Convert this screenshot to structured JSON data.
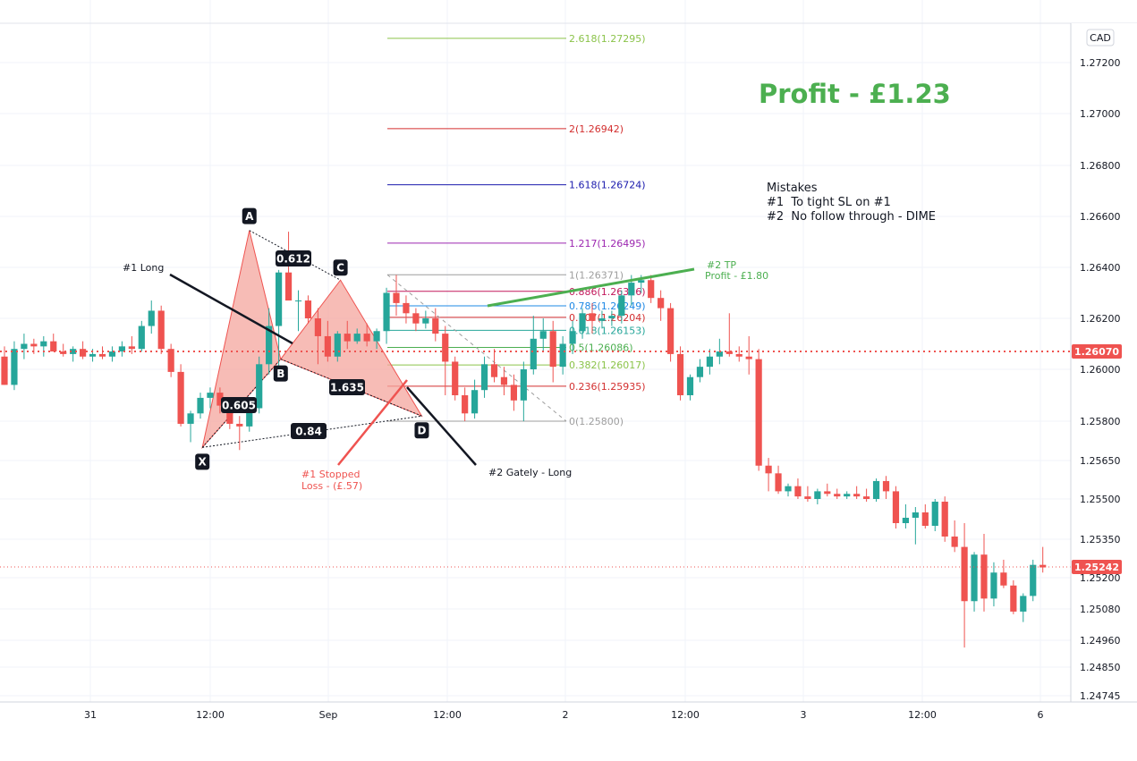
{
  "chart_data": {
    "type": "candlestick",
    "currency": "CAD",
    "colors": {
      "up": "#26a69a",
      "down": "#ef5350",
      "pattern_fill": "#f4a59d",
      "profit": "#4caf50"
    },
    "x_ticks": [
      "31",
      "12:00",
      "Sep",
      "12:00",
      "2",
      "12:00",
      "3",
      "12:00",
      "6"
    ],
    "y_ticks": [
      "1.27200",
      "1.27000",
      "1.26800",
      "1.26600",
      "1.26400",
      "1.26200",
      "1.26000",
      "1.25800",
      "1.25650",
      "1.25500",
      "1.25350",
      "1.25200",
      "1.25080",
      "1.24960",
      "1.24850",
      "1.24745"
    ],
    "price_marks": [
      {
        "label": "1.26070",
        "value": 1.2607,
        "color": "#ef5350"
      },
      {
        "label": "1.25242",
        "value": 1.25242,
        "color": "#ef5350"
      }
    ],
    "fib_levels": [
      {
        "label": "2.618(1.27295)",
        "value": 1.27295,
        "color": "#8bc34a"
      },
      {
        "label": "2(1.26942)",
        "value": 1.26942,
        "color": "#d32f2f"
      },
      {
        "label": "1.618(1.26724)",
        "value": 1.26724,
        "color": "#1a1aad"
      },
      {
        "label": "1.217(1.26495)",
        "value": 1.26495,
        "color": "#9c27b0"
      },
      {
        "label": "1(1.26371)",
        "value": 1.26371,
        "color": "#9e9e9e"
      },
      {
        "label": "0.886(1.26306)",
        "value": 1.26306,
        "color": "#c2185b"
      },
      {
        "label": "0.786(1.26249)",
        "value": 1.26249,
        "color": "#1e88e5"
      },
      {
        "label": "0.707(1.26204)",
        "value": 1.26204,
        "color": "#d32f2f"
      },
      {
        "label": "0.618(1.26153)",
        "value": 1.26153,
        "color": "#26a69a"
      },
      {
        "label": "0.5(1.26086)",
        "value": 1.26086,
        "color": "#4caf50"
      },
      {
        "label": "0.382(1.26017)",
        "value": 1.26017,
        "color": "#8bc34a"
      },
      {
        "label": "0.236(1.25935)",
        "value": 1.25935,
        "color": "#d32f2f"
      },
      {
        "label": "0(1.25800)",
        "value": 1.258,
        "color": "#9e9e9e"
      }
    ],
    "pattern": {
      "points": [
        "X",
        "A",
        "B",
        "C",
        "D"
      ],
      "ratios": [
        "0.612",
        "1.635",
        "0.605",
        "0.84"
      ]
    },
    "annotations": {
      "profit_title": "Profit - £1.23",
      "mistakes_title": "Mistakes",
      "mistake_1": "#1  To tight SL on #1",
      "mistake_2": "#2  No follow through - DIME",
      "long_1": "#1 Long",
      "long_2": "#2 Gately - Long",
      "stopped_1": "#1 Stopped",
      "stopped_2": "Loss - (£.57)",
      "tp_1": "#2 TP",
      "tp_2": "Profit - £1.80"
    },
    "candles": [
      [
        1.2605,
        1.2609,
        1.2594,
        1.2594
      ],
      [
        1.2594,
        1.2611,
        1.2592,
        1.2608
      ],
      [
        1.2608,
        1.2614,
        1.2604,
        1.261
      ],
      [
        1.261,
        1.2612,
        1.2606,
        1.2609
      ],
      [
        1.2609,
        1.2613,
        1.2605,
        1.2611
      ],
      [
        1.2611,
        1.2614,
        1.2607,
        1.2607
      ],
      [
        1.2607,
        1.261,
        1.2605,
        1.2606
      ],
      [
        1.2606,
        1.2609,
        1.2603,
        1.2608
      ],
      [
        1.2608,
        1.2611,
        1.2604,
        1.2605
      ],
      [
        1.2605,
        1.2608,
        1.2603,
        1.2606
      ],
      [
        1.2606,
        1.2609,
        1.2604,
        1.2605
      ],
      [
        1.2605,
        1.2609,
        1.2603,
        1.2607
      ],
      [
        1.2607,
        1.2611,
        1.2605,
        1.2609
      ],
      [
        1.2609,
        1.2613,
        1.2606,
        1.2608
      ],
      [
        1.2608,
        1.2619,
        1.2607,
        1.2617
      ],
      [
        1.2617,
        1.2627,
        1.2614,
        1.2623
      ],
      [
        1.2623,
        1.2625,
        1.2606,
        1.2608
      ],
      [
        1.2608,
        1.261,
        1.2597,
        1.2599
      ],
      [
        1.2599,
        1.2602,
        1.2578,
        1.2579
      ],
      [
        1.2579,
        1.2584,
        1.2572,
        1.2583
      ],
      [
        1.2583,
        1.2591,
        1.2581,
        1.2589
      ],
      [
        1.2589,
        1.2593,
        1.2585,
        1.2591
      ],
      [
        1.2591,
        1.2593,
        1.2583,
        1.2586
      ],
      [
        1.2586,
        1.2589,
        1.2577,
        1.2579
      ],
      [
        1.2579,
        1.2582,
        1.2569,
        1.2578
      ],
      [
        1.2578,
        1.2587,
        1.2576,
        1.2585
      ],
      [
        1.2585,
        1.2605,
        1.2583,
        1.2602
      ],
      [
        1.2602,
        1.2624,
        1.2598,
        1.2617
      ],
      [
        1.2617,
        1.2639,
        1.2601,
        1.2638
      ],
      [
        1.2638,
        1.2654,
        1.2628,
        1.2627
      ],
      [
        1.2627,
        1.2631,
        1.2615,
        1.2627
      ],
      [
        1.2627,
        1.2629,
        1.2618,
        1.262
      ],
      [
        1.262,
        1.2624,
        1.2602,
        1.2613
      ],
      [
        1.2613,
        1.2619,
        1.2603,
        1.2605
      ],
      [
        1.2605,
        1.2615,
        1.2603,
        1.2614
      ],
      [
        1.2614,
        1.2619,
        1.2608,
        1.2611
      ],
      [
        1.2611,
        1.2616,
        1.261,
        1.2614
      ],
      [
        1.2614,
        1.2618,
        1.2609,
        1.2611
      ],
      [
        1.2611,
        1.2616,
        1.2608,
        1.2615
      ],
      [
        1.2615,
        1.2632,
        1.261,
        1.263
      ],
      [
        1.263,
        1.2637,
        1.2621,
        1.2626
      ],
      [
        1.2626,
        1.2629,
        1.2618,
        1.2622
      ],
      [
        1.2622,
        1.2624,
        1.2615,
        1.2618
      ],
      [
        1.2618,
        1.2623,
        1.2616,
        1.262
      ],
      [
        1.262,
        1.2624,
        1.2611,
        1.2614
      ],
      [
        1.2614,
        1.2617,
        1.259,
        1.2603
      ],
      [
        1.2603,
        1.2605,
        1.2588,
        1.259
      ],
      [
        1.259,
        1.2593,
        1.258,
        1.2583
      ],
      [
        1.2583,
        1.2596,
        1.2581,
        1.2592
      ],
      [
        1.2592,
        1.2605,
        1.2589,
        1.2602
      ],
      [
        1.2602,
        1.2608,
        1.2595,
        1.2597
      ],
      [
        1.2597,
        1.2601,
        1.259,
        1.2594
      ],
      [
        1.2594,
        1.2598,
        1.2584,
        1.2588
      ],
      [
        1.2588,
        1.2603,
        1.258,
        1.26
      ],
      [
        1.26,
        1.2621,
        1.2598,
        1.2612
      ],
      [
        1.2612,
        1.262,
        1.2607,
        1.2615
      ],
      [
        1.2615,
        1.2619,
        1.2595,
        1.2601
      ],
      [
        1.2601,
        1.2613,
        1.2598,
        1.261
      ],
      [
        1.261,
        1.2619,
        1.2606,
        1.2615
      ],
      [
        1.2615,
        1.2624,
        1.2612,
        1.2622
      ],
      [
        1.2622,
        1.2626,
        1.2614,
        1.2619
      ],
      [
        1.2619,
        1.2623,
        1.2616,
        1.262
      ],
      [
        1.262,
        1.2623,
        1.2617,
        1.2621
      ],
      [
        1.2621,
        1.2631,
        1.2618,
        1.2629
      ],
      [
        1.2629,
        1.2637,
        1.2625,
        1.2634
      ],
      [
        1.2634,
        1.2637,
        1.263,
        1.2635
      ],
      [
        1.2635,
        1.2637,
        1.2626,
        1.2628
      ],
      [
        1.2628,
        1.2631,
        1.2619,
        1.2624
      ],
      [
        1.2624,
        1.2626,
        1.2603,
        1.2606
      ],
      [
        1.2606,
        1.2609,
        1.2588,
        1.259
      ],
      [
        1.259,
        1.2598,
        1.2588,
        1.2597
      ],
      [
        1.2597,
        1.2604,
        1.2595,
        1.2601
      ],
      [
        1.2601,
        1.2608,
        1.2598,
        1.2605
      ],
      [
        1.2605,
        1.2612,
        1.2602,
        1.2607
      ],
      [
        1.2607,
        1.2622,
        1.2605,
        1.2606
      ],
      [
        1.2606,
        1.2609,
        1.2603,
        1.2605
      ],
      [
        1.2605,
        1.2613,
        1.2598,
        1.2604
      ],
      [
        1.2604,
        1.2608,
        1.2561,
        1.2563
      ],
      [
        1.2563,
        1.2566,
        1.2553,
        1.256
      ],
      [
        1.256,
        1.2563,
        1.2552,
        1.2553
      ],
      [
        1.2553,
        1.2556,
        1.2551,
        1.2555
      ],
      [
        1.2555,
        1.2558,
        1.255,
        1.2551
      ],
      [
        1.2551,
        1.2555,
        1.2549,
        1.255
      ],
      [
        1.255,
        1.2554,
        1.2548,
        1.2553
      ],
      [
        1.2553,
        1.2556,
        1.2551,
        1.2552
      ],
      [
        1.2552,
        1.2554,
        1.255,
        1.2551
      ],
      [
        1.2551,
        1.2553,
        1.255,
        1.2552
      ],
      [
        1.2552,
        1.2555,
        1.255,
        1.2551
      ],
      [
        1.2551,
        1.2554,
        1.2549,
        1.255
      ],
      [
        1.255,
        1.2558,
        1.2549,
        1.2557
      ],
      [
        1.2557,
        1.2559,
        1.255,
        1.2553
      ],
      [
        1.2553,
        1.2555,
        1.2539,
        1.2541
      ],
      [
        1.2541,
        1.2548,
        1.2539,
        1.2543
      ],
      [
        1.2543,
        1.2547,
        1.2533,
        1.2545
      ],
      [
        1.2545,
        1.2548,
        1.2539,
        1.254
      ],
      [
        1.254,
        1.255,
        1.2538,
        1.2549
      ],
      [
        1.2549,
        1.2551,
        1.2534,
        1.2536
      ],
      [
        1.2536,
        1.2542,
        1.253,
        1.2532
      ],
      [
        1.2532,
        1.2541,
        1.2493,
        1.2511
      ],
      [
        1.2511,
        1.253,
        1.2507,
        1.2529
      ],
      [
        1.2529,
        1.2537,
        1.2507,
        1.2512
      ],
      [
        1.2512,
        1.2526,
        1.2509,
        1.2522
      ],
      [
        1.2522,
        1.2527,
        1.2516,
        1.2517
      ],
      [
        1.2517,
        1.2519,
        1.2506,
        1.2507
      ],
      [
        1.2507,
        1.2514,
        1.2503,
        1.2513
      ],
      [
        1.2513,
        1.2527,
        1.2511,
        1.2525
      ],
      [
        1.2525,
        1.2532,
        1.2522,
        1.2524
      ]
    ]
  }
}
